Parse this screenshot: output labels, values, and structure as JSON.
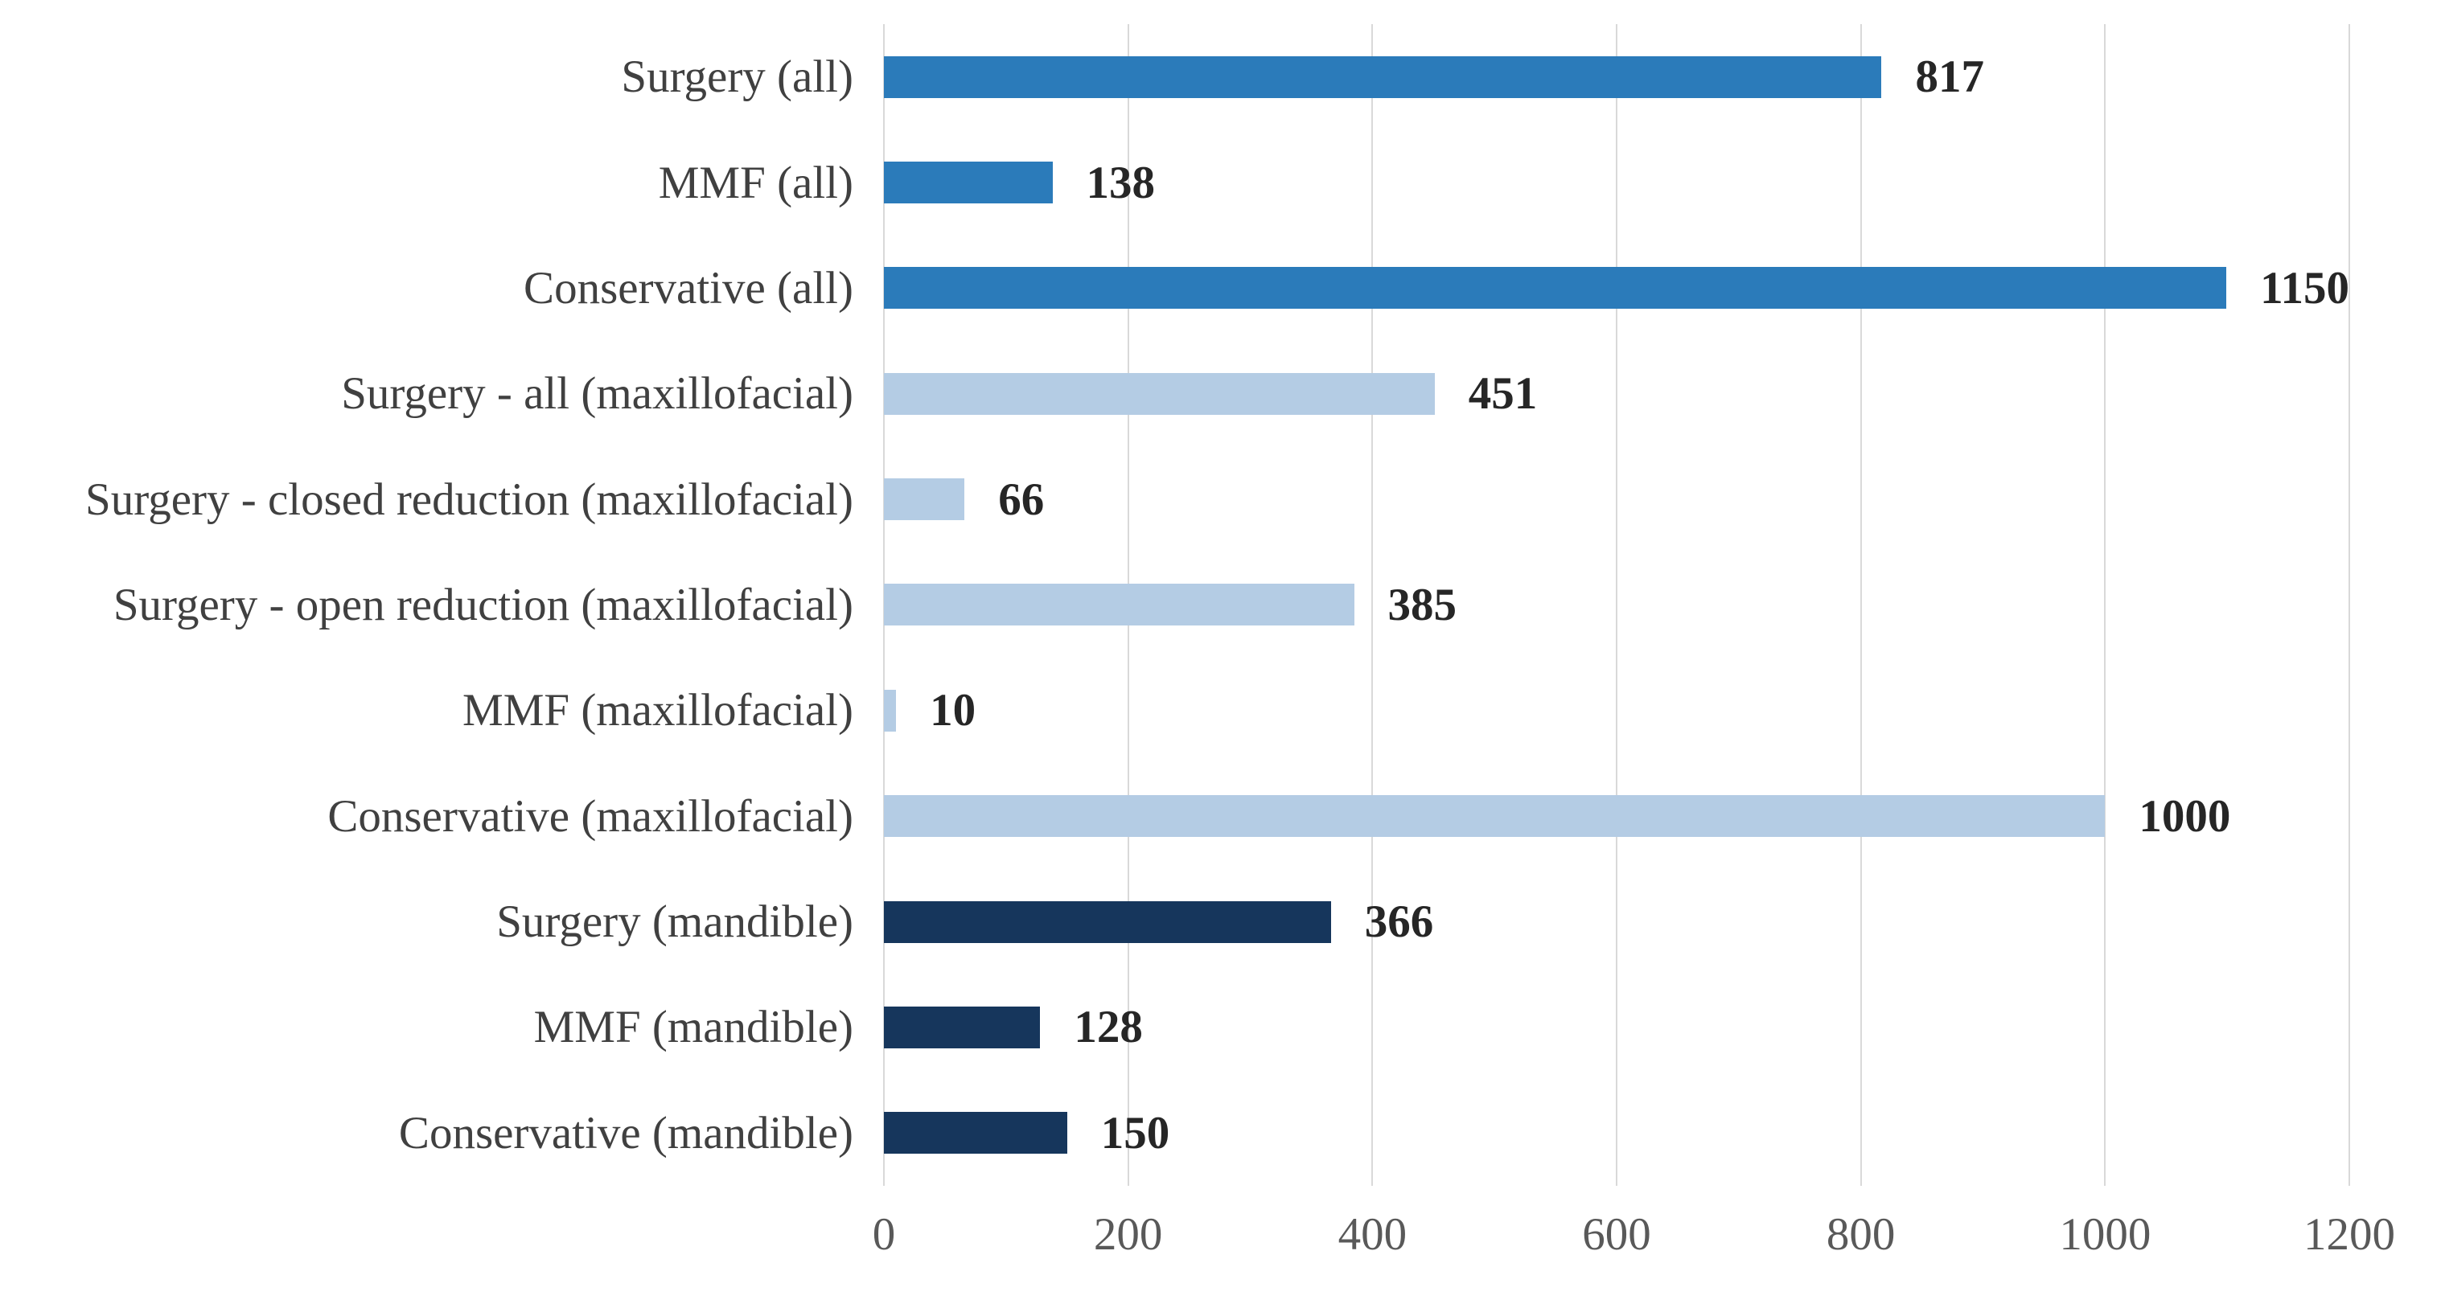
{
  "chart_data": {
    "type": "bar",
    "orientation": "horizontal",
    "title": "",
    "xlabel": "",
    "ylabel": "",
    "xlim": [
      0,
      1200
    ],
    "x_ticks": [
      0,
      200,
      400,
      600,
      800,
      1000,
      1200
    ],
    "grid": "vertical-only",
    "legend": "none",
    "value_labels": "bold, right of bar end",
    "categories": [
      "Surgery (all)",
      "MMF (all)",
      "Conservative (all)",
      "Surgery - all (maxillofacial)",
      "Surgery - closed reduction (maxillofacial)",
      "Surgery - open reduction (maxillofacial)",
      "MMF (maxillofacial)",
      "Conservative (maxillofacial)",
      "Surgery (mandible)",
      "MMF (mandible)",
      "Conservative (mandible)"
    ],
    "values": [
      817,
      138,
      1150,
      451,
      66,
      385,
      10,
      1000,
      366,
      128,
      150
    ],
    "groups": [
      "all",
      "all",
      "all",
      "maxillofacial",
      "maxillofacial",
      "maxillofacial",
      "maxillofacial",
      "maxillofacial",
      "mandible",
      "mandible",
      "mandible"
    ]
  },
  "colors": {
    "group_all": "#2b7bba",
    "group_maxillofacial": "#b4cce4",
    "group_mandible": "#16365c",
    "gridline": "#d9d9d9",
    "category_text": "#404040",
    "tick_text": "#595959",
    "value_text": "#262626",
    "background": "#ffffff"
  }
}
